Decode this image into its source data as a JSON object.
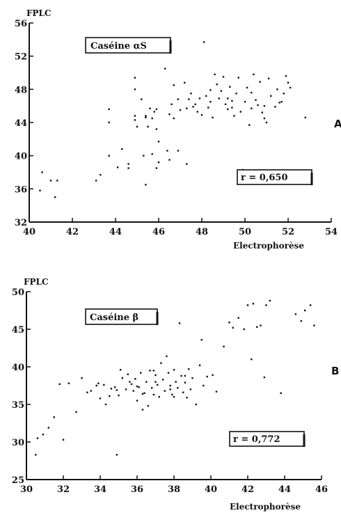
{
  "chart_data": [
    {
      "type": "scatter",
      "panel_letter": "A",
      "inset_label": "Caséine αS",
      "correlation_label": "r = 0,650",
      "xlabel": "Electrophorèse",
      "ylabel": "FPLC",
      "xlim": [
        40,
        54
      ],
      "ylim": [
        32,
        56
      ],
      "x_ticks": [
        "40",
        "42",
        "44",
        "46",
        "48",
        "50",
        "52",
        "54"
      ],
      "y_ticks": [
        "32",
        "36",
        "40",
        "44",
        "48",
        "52",
        "56"
      ],
      "x_tick_values": [
        40,
        42,
        44,
        46,
        48,
        50,
        52,
        54
      ],
      "y_tick_values": [
        32,
        36,
        40,
        44,
        48,
        52,
        56
      ],
      "points": [
        [
          40.6,
          38.0
        ],
        [
          40.5,
          35.8
        ],
        [
          41.0,
          37.0
        ],
        [
          41.3,
          37.0
        ],
        [
          41.2,
          35.0
        ],
        [
          43.1,
          37.0
        ],
        [
          43.3,
          37.7
        ],
        [
          43.7,
          40.0
        ],
        [
          43.7,
          45.6
        ],
        [
          43.7,
          44.0
        ],
        [
          44.1,
          38.6
        ],
        [
          44.3,
          40.8
        ],
        [
          44.6,
          39.0
        ],
        [
          44.6,
          38.5
        ],
        [
          44.9,
          49.4
        ],
        [
          44.9,
          48.0
        ],
        [
          44.9,
          44.8
        ],
        [
          44.9,
          44.3
        ],
        [
          45.0,
          43.5
        ],
        [
          45.2,
          46.8
        ],
        [
          45.4,
          44.6
        ],
        [
          45.3,
          40.0
        ],
        [
          45.4,
          36.5
        ],
        [
          45.5,
          43.5
        ],
        [
          45.6,
          45.7
        ],
        [
          45.7,
          44.5
        ],
        [
          45.8,
          45.3
        ],
        [
          45.7,
          40.2
        ],
        [
          45.9,
          38.5
        ],
        [
          45.9,
          43.2
        ],
        [
          46.0,
          41.7
        ],
        [
          46.0,
          39.2
        ],
        [
          46.3,
          50.5
        ],
        [
          46.4,
          40.6
        ],
        [
          46.5,
          39.5
        ],
        [
          46.7,
          48.5
        ],
        [
          46.6,
          46.2
        ],
        [
          46.5,
          45.0
        ],
        [
          46.7,
          44.5
        ],
        [
          46.9,
          40.6
        ],
        [
          47.0,
          45.5
        ],
        [
          47.2,
          48.8
        ],
        [
          47.3,
          45.7
        ],
        [
          47.3,
          39.0
        ],
        [
          47.4,
          46.8
        ],
        [
          47.5,
          47.5
        ],
        [
          47.7,
          46.2
        ],
        [
          47.8,
          45.3
        ],
        [
          47.9,
          46.9
        ],
        [
          48.0,
          44.9
        ],
        [
          48.1,
          53.7
        ],
        [
          48.2,
          47.2
        ],
        [
          48.3,
          45.8
        ],
        [
          48.4,
          46.5
        ],
        [
          48.5,
          44.6
        ],
        [
          48.6,
          49.8
        ],
        [
          48.7,
          48.6
        ],
        [
          48.8,
          46.9
        ],
        [
          48.9,
          47.8
        ],
        [
          49.0,
          49.5
        ],
        [
          49.1,
          46.2
        ],
        [
          49.2,
          45.6
        ],
        [
          49.3,
          48.3
        ],
        [
          49.4,
          46.6
        ],
        [
          49.5,
          44.8
        ],
        [
          49.6,
          47.5
        ],
        [
          49.7,
          49.4
        ],
        [
          49.8,
          45.3
        ],
        [
          49.9,
          38.3
        ],
        [
          50.0,
          46.5
        ],
        [
          50.1,
          48.2
        ],
        [
          50.2,
          43.7
        ],
        [
          50.3,
          45.7
        ],
        [
          50.4,
          49.8
        ],
        [
          50.5,
          46.7
        ],
        [
          50.7,
          48.9
        ],
        [
          50.8,
          45.2
        ],
        [
          50.9,
          46.0
        ],
        [
          51.0,
          44.0
        ],
        [
          51.1,
          49.3
        ],
        [
          51.2,
          47.2
        ],
        [
          51.4,
          45.9
        ],
        [
          51.5,
          48.0
        ],
        [
          51.7,
          46.5
        ],
        [
          51.8,
          47.5
        ],
        [
          51.9,
          49.6
        ],
        [
          52.0,
          48.8
        ],
        [
          52.1,
          48.2
        ],
        [
          51.6,
          46.4
        ],
        [
          52.8,
          44.6
        ],
        [
          50.6,
          46.1
        ],
        [
          48.4,
          47.9
        ],
        [
          47.6,
          45.9
        ],
        [
          49.2,
          46.9
        ],
        [
          50.9,
          44.5
        ],
        [
          46.9,
          46.8
        ],
        [
          45.4,
          44.8
        ],
        [
          45.9,
          45.6
        ],
        [
          49.4,
          45.8
        ],
        [
          50.3,
          47.6
        ]
      ]
    },
    {
      "type": "scatter",
      "panel_letter": "B",
      "inset_label": "Caséine β",
      "correlation_label": "r = 0,772",
      "xlabel": "Electrophorèse",
      "ylabel": "FPLC",
      "xlim": [
        30,
        46
      ],
      "ylim": [
        25,
        50
      ],
      "x_ticks": [
        "30",
        "32",
        "34",
        "36",
        "38",
        "40",
        "42",
        "44",
        "46"
      ],
      "y_ticks": [
        "25",
        "30",
        "35",
        "40",
        "45",
        "50"
      ],
      "x_tick_values": [
        30,
        32,
        34,
        36,
        38,
        40,
        42,
        44,
        46
      ],
      "y_tick_values": [
        25,
        30,
        35,
        40,
        45,
        50
      ],
      "points": [
        [
          30.5,
          28.3
        ],
        [
          30.6,
          30.5
        ],
        [
          30.9,
          31.0
        ],
        [
          31.2,
          31.9
        ],
        [
          31.5,
          33.3
        ],
        [
          31.8,
          37.7
        ],
        [
          32.0,
          30.3
        ],
        [
          32.3,
          37.8
        ],
        [
          32.7,
          34.0
        ],
        [
          33.0,
          38.5
        ],
        [
          33.3,
          36.6
        ],
        [
          33.5,
          36.8
        ],
        [
          33.8,
          37.5
        ],
        [
          34.0,
          35.8
        ],
        [
          34.2,
          37.6
        ],
        [
          34.3,
          35.0
        ],
        [
          34.5,
          36.1
        ],
        [
          34.6,
          37.1
        ],
        [
          34.8,
          37.3
        ],
        [
          34.9,
          28.3
        ],
        [
          35.0,
          36.2
        ],
        [
          35.1,
          39.6
        ],
        [
          35.2,
          38.5
        ],
        [
          35.4,
          37.0
        ],
        [
          35.5,
          39.0
        ],
        [
          35.7,
          37.7
        ],
        [
          35.8,
          36.8
        ],
        [
          35.9,
          38.4
        ],
        [
          36.0,
          35.5
        ],
        [
          36.1,
          37.3
        ],
        [
          36.2,
          39.2
        ],
        [
          36.3,
          34.3
        ],
        [
          36.4,
          36.5
        ],
        [
          36.5,
          38.0
        ],
        [
          36.6,
          34.8
        ],
        [
          36.7,
          39.5
        ],
        [
          36.8,
          37.2
        ],
        [
          36.9,
          36.3
        ],
        [
          37.0,
          38.9
        ],
        [
          37.1,
          37.6
        ],
        [
          37.2,
          36.0
        ],
        [
          37.3,
          40.5
        ],
        [
          37.4,
          38.3
        ],
        [
          37.5,
          36.8
        ],
        [
          37.6,
          41.4
        ],
        [
          37.7,
          39.2
        ],
        [
          37.8,
          37.5
        ],
        [
          37.9,
          36.3
        ],
        [
          38.0,
          39.6
        ],
        [
          38.1,
          38.0
        ],
        [
          38.2,
          37.2
        ],
        [
          38.3,
          45.8
        ],
        [
          38.4,
          38.8
        ],
        [
          38.5,
          36.6
        ],
        [
          38.6,
          37.9
        ],
        [
          38.7,
          35.9
        ],
        [
          38.8,
          39.7
        ],
        [
          38.9,
          37.0
        ],
        [
          39.0,
          38.5
        ],
        [
          39.2,
          35.0
        ],
        [
          39.4,
          40.2
        ],
        [
          39.5,
          43.6
        ],
        [
          39.6,
          37.5
        ],
        [
          39.8,
          38.7
        ],
        [
          40.1,
          38.9
        ],
        [
          40.3,
          36.7
        ],
        [
          40.7,
          42.7
        ],
        [
          41.0,
          45.9
        ],
        [
          41.2,
          45.2
        ],
        [
          41.5,
          46.5
        ],
        [
          41.8,
          45.0
        ],
        [
          42.0,
          48.2
        ],
        [
          42.2,
          41.0
        ],
        [
          42.3,
          48.4
        ],
        [
          42.5,
          45.3
        ],
        [
          42.7,
          45.5
        ],
        [
          42.9,
          38.6
        ],
        [
          43.0,
          48.2
        ],
        [
          43.2,
          48.8
        ],
        [
          43.8,
          36.5
        ],
        [
          44.6,
          47.0
        ],
        [
          44.9,
          46.1
        ],
        [
          45.1,
          47.5
        ],
        [
          45.4,
          48.2
        ],
        [
          45.6,
          45.5
        ],
        [
          36.0,
          37.4
        ],
        [
          37.0,
          38.0
        ],
        [
          38.0,
          36.0
        ],
        [
          35.6,
          38.0
        ],
        [
          36.9,
          39.5
        ],
        [
          37.8,
          37.0
        ],
        [
          38.6,
          38.8
        ],
        [
          36.3,
          36.4
        ],
        [
          34.9,
          36.9
        ],
        [
          33.9,
          37.8
        ]
      ]
    }
  ]
}
